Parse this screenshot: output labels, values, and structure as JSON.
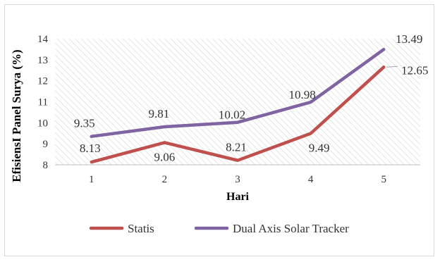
{
  "chart_data": {
    "type": "line",
    "categories": [
      "1",
      "2",
      "3",
      "4",
      "5"
    ],
    "series": [
      {
        "name": "Statis",
        "values": [
          8.13,
          9.06,
          8.21,
          9.49,
          12.65
        ],
        "color": "#c0504d"
      },
      {
        "name": "Dual Axis Solar Tracker",
        "values": [
          9.35,
          9.81,
          10.02,
          10.98,
          13.49
        ],
        "color": "#8064a2"
      }
    ],
    "data_labels": {
      "Statis": [
        "8.13",
        "9.06",
        "8.21",
        "9.49",
        "12.65"
      ],
      "Dual Axis Solar Tracker": [
        "9.35",
        "9.81",
        "10.02",
        "10.98",
        "13.49"
      ]
    },
    "title": "",
    "xlabel": "Hari",
    "ylabel": "EfisiensI  Panel Surya (%)",
    "ylim": [
      8,
      14
    ],
    "yticks": [
      "8",
      "9",
      "10",
      "11",
      "12",
      "13",
      "14"
    ],
    "grid": "hatched plot area",
    "legend_position": "bottom"
  }
}
